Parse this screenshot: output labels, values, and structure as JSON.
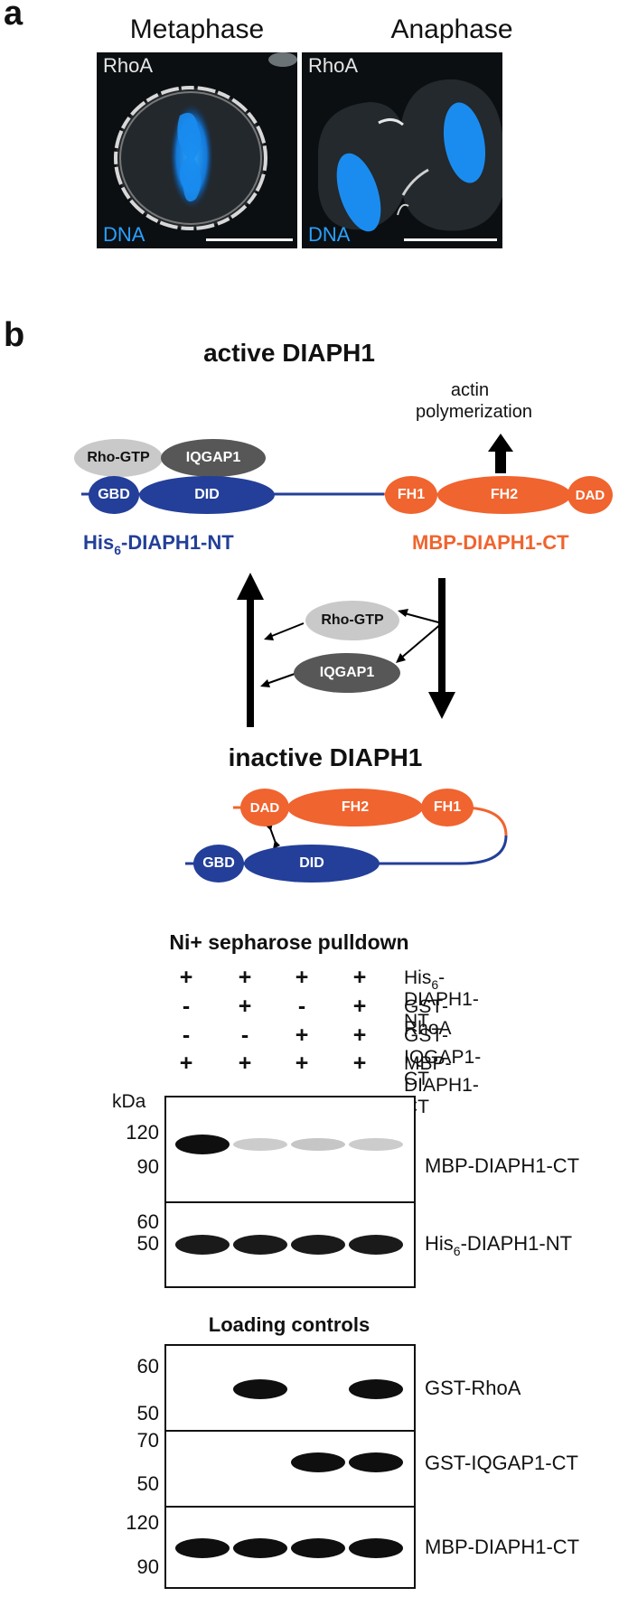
{
  "panel_a": {
    "letter": "a",
    "metaphase": {
      "title": "Metaphase",
      "stain": "RhoA",
      "dna": "DNA"
    },
    "anaphase": {
      "title": "Anaphase",
      "stain": "RhoA",
      "dna": "DNA"
    }
  },
  "panel_b": {
    "letter": "b",
    "active_title": "active DIAPH1",
    "inactive_title": "inactive DIAPH1",
    "actin_line1": "actin",
    "actin_line2": "polymerization",
    "domains": {
      "rho_gtp": "Rho-GTP",
      "iqgap1": "IQGAP1",
      "gbd": "GBD",
      "did": "DID",
      "fh1": "FH1",
      "fh2": "FH2",
      "dad": "DAD"
    },
    "nt_label_prefix": "His",
    "nt_label_sub": "6",
    "nt_label_suffix": "-DIAPH1-NT",
    "ct_label": "MBP-DIAPH1-CT",
    "colors": {
      "nt_blue": "#233f99",
      "ct_orange": "#f0642f",
      "rho_gray": "#c9c9c9",
      "iqgap_gray": "#575757"
    }
  },
  "pulldown": {
    "title": "Ni+ sepharose pulldown",
    "rows": [
      {
        "prefix": "His",
        "sub": "6",
        "suffix": "-DIAPH1-NT",
        "signs": [
          "+",
          "+",
          "+",
          "+"
        ]
      },
      {
        "prefix": "GST-RhoA",
        "sub": "",
        "suffix": "",
        "signs": [
          "-",
          "+",
          "-",
          "+"
        ]
      },
      {
        "prefix": "GST-IQGAP1-CT",
        "sub": "",
        "suffix": "",
        "signs": [
          "-",
          "-",
          "+",
          "+"
        ]
      },
      {
        "prefix": "MBP-DIAPH1-CT",
        "sub": "",
        "suffix": "",
        "signs": [
          "+",
          "+",
          "+",
          "+"
        ]
      }
    ],
    "kda": "kDa",
    "blot1": {
      "mw": [
        "120",
        "90"
      ],
      "name": "MBP-DIAPH1-CT",
      "band_intensity": [
        1.0,
        0.12,
        0.15,
        0.12
      ]
    },
    "blot2": {
      "mw": [
        "60",
        "50"
      ],
      "name_prefix": "His",
      "name_sub": "6",
      "name_suffix": "-DIAPH1-NT",
      "band_intensity": [
        0.95,
        0.95,
        0.95,
        0.95
      ]
    }
  },
  "loading": {
    "title": "Loading controls",
    "blot3": {
      "mw": [
        "60",
        "50"
      ],
      "name": "GST-RhoA",
      "band_intensity": [
        0,
        1,
        0,
        1
      ]
    },
    "blot4": {
      "mw": [
        "70",
        "50"
      ],
      "name": "GST-IQGAP1-CT",
      "band_intensity": [
        0,
        0,
        1,
        1
      ]
    },
    "blot5": {
      "mw": [
        "120",
        "90"
      ],
      "name": "MBP-DIAPH1-CT",
      "band_intensity": [
        1,
        1,
        1,
        1
      ]
    }
  }
}
